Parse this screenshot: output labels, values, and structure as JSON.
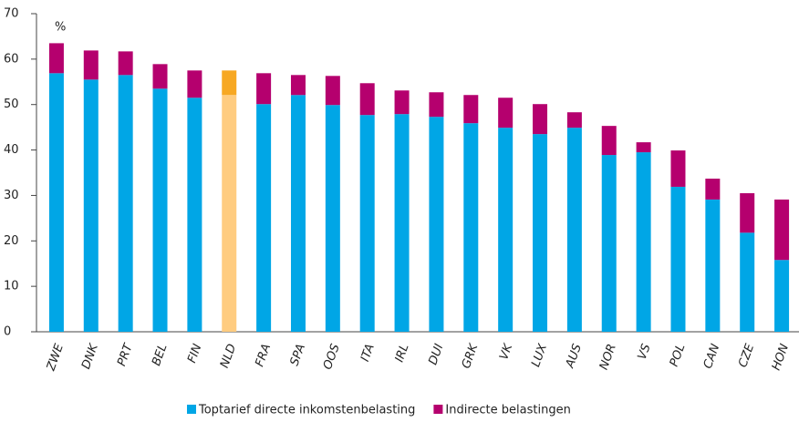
{
  "chart_data": {
    "type": "stacked_bar",
    "categories": [
      "ZWE",
      "DNK",
      "PRT",
      "BEL",
      "FIN",
      "NLD",
      "FRA",
      "SPA",
      "OOS",
      "ITA",
      "IRL",
      "DUI",
      "GRK",
      "VK",
      "LUX",
      "AUS",
      "NOR",
      "VS",
      "POL",
      "CAN",
      "CZE",
      "HON"
    ],
    "series": [
      {
        "name": "Toptarief directe inkomstenbelasting",
        "color": "#00a6e6",
        "values": [
          56.9,
          55.5,
          56.5,
          53.5,
          51.5,
          52.1,
          50.1,
          52.1,
          49.9,
          47.7,
          47.9,
          47.3,
          45.9,
          44.9,
          43.5,
          44.9,
          38.9,
          39.5,
          31.9,
          29.1,
          21.8,
          15.8
        ]
      },
      {
        "name": "Indirecte belastingen",
        "color": "#b5006e",
        "values": [
          6.6,
          6.4,
          5.2,
          5.4,
          6.0,
          5.4,
          6.8,
          4.4,
          6.4,
          7.0,
          5.2,
          5.4,
          6.2,
          6.6,
          6.6,
          3.4,
          6.4,
          2.2,
          8.0,
          4.6,
          8.7,
          13.3
        ]
      }
    ],
    "highlight": "NLD",
    "highlight_colors": [
      "#ffcc80",
      "#f7a823"
    ],
    "y_unit_label": "%",
    "ylim": [
      0,
      70
    ],
    "yticks": [
      0,
      10,
      20,
      30,
      40,
      50,
      60,
      70
    ],
    "grid": false,
    "legend": "bottom"
  }
}
